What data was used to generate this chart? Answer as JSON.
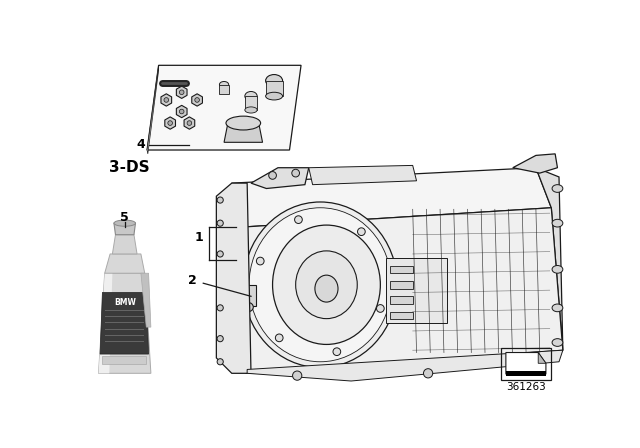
{
  "bg_color": "#ffffff",
  "text_color": "#000000",
  "label_3ds": "3-DS",
  "label_4": "4",
  "label_1": "1",
  "label_2": "2",
  "label_5": "5",
  "part_number": "361263",
  "fig_width": 6.4,
  "fig_height": 4.48,
  "line_color": "#1a1a1a",
  "gray_light": "#d0d0d0",
  "gray_mid": "#888888",
  "gray_dark": "#444444"
}
